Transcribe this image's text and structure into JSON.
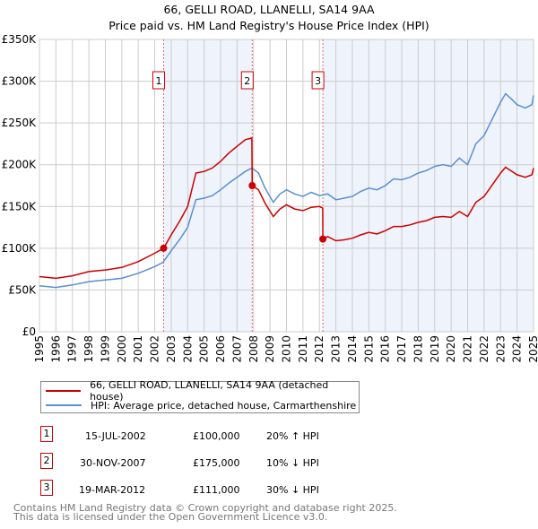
{
  "title": "66, GELLI ROAD, LLANELLI, SA14 9AA",
  "subtitle": "Price paid vs. HM Land Registry's House Price Index (HPI)",
  "chart_data": {
    "type": "line",
    "xlim": [
      1995,
      2025
    ],
    "ylim": [
      0,
      350000
    ],
    "yticks": [
      0,
      50000,
      100000,
      150000,
      200000,
      250000,
      300000,
      350000
    ],
    "ytick_labels": [
      "£0",
      "£50K",
      "£100K",
      "£150K",
      "£200K",
      "£250K",
      "£300K",
      "£350K"
    ],
    "xticks": [
      "1995",
      "1996",
      "1997",
      "1998",
      "1999",
      "2000",
      "2001",
      "2002",
      "2003",
      "2004",
      "2005",
      "2006",
      "2007",
      "2008",
      "2009",
      "2010",
      "2011",
      "2012",
      "2013",
      "2014",
      "2015",
      "2016",
      "2017",
      "2018",
      "2019",
      "2020",
      "2021",
      "2022",
      "2023",
      "2024",
      "2025"
    ],
    "colors": {
      "property": "#cc0000",
      "hpi": "#5b8fd0",
      "shade": "#eef3fc"
    },
    "series": [
      {
        "name": "66, GELLI ROAD, LLANELLI, SA14 9AA (detached house)",
        "key": "property",
        "x": [
          1995,
          1996,
          1997,
          1998,
          1999,
          2000,
          2001,
          2002,
          2002.54,
          2003,
          2003.5,
          2004,
          2004.5,
          2005,
          2005.5,
          2006,
          2006.5,
          2007,
          2007.5,
          2007.9,
          2007.92,
          2008.3,
          2008.7,
          2009.2,
          2009.6,
          2010,
          2010.5,
          2011,
          2011.5,
          2012,
          2012.2,
          2012.21,
          2012.5,
          2013,
          2013.5,
          2014,
          2014.5,
          2015,
          2015.5,
          2016,
          2016.5,
          2017,
          2017.5,
          2018,
          2018.5,
          2019,
          2019.5,
          2020,
          2020.5,
          2021,
          2021.5,
          2022,
          2022.5,
          2023,
          2023.3,
          2023.7,
          2024,
          2024.5,
          2024.9,
          2025
        ],
        "y": [
          66000,
          64000,
          67000,
          72000,
          74000,
          77000,
          84000,
          94000,
          100000,
          116000,
          132000,
          150000,
          190000,
          192000,
          196000,
          204000,
          214000,
          222000,
          230000,
          232000,
          175000,
          170000,
          154000,
          138000,
          147000,
          152000,
          147000,
          145000,
          149000,
          150000,
          148000,
          111000,
          114000,
          109000,
          110000,
          112000,
          116000,
          119000,
          117000,
          121000,
          126000,
          126000,
          128000,
          131000,
          133000,
          137000,
          138000,
          137000,
          144000,
          138000,
          155000,
          162000,
          176000,
          190000,
          197000,
          192000,
          188000,
          185000,
          188000,
          196000
        ]
      },
      {
        "name": "HPI: Average price, detached house, Carmarthenshire",
        "key": "hpi",
        "x": [
          1995,
          1996,
          1997,
          1998,
          1999,
          2000,
          2001,
          2002,
          2002.5,
          2003,
          2003.5,
          2004,
          2004.5,
          2005,
          2005.5,
          2006,
          2006.5,
          2007,
          2007.5,
          2007.9,
          2008.3,
          2008.7,
          2009.2,
          2009.6,
          2010,
          2010.5,
          2011,
          2011.5,
          2012,
          2012.5,
          2013,
          2013.5,
          2014,
          2014.5,
          2015,
          2015.5,
          2016,
          2016.5,
          2017,
          2017.5,
          2018,
          2018.5,
          2019,
          2019.5,
          2020,
          2020.5,
          2021,
          2021.5,
          2022,
          2022.5,
          2023,
          2023.3,
          2023.7,
          2024,
          2024.5,
          2024.9,
          2025
        ],
        "y": [
          55000,
          53000,
          56000,
          60000,
          62000,
          64000,
          70000,
          78000,
          83000,
          97000,
          110000,
          125000,
          158000,
          160000,
          163000,
          170000,
          178000,
          185000,
          192000,
          196000,
          190000,
          172000,
          155000,
          165000,
          170000,
          165000,
          162000,
          167000,
          163000,
          165000,
          158000,
          160000,
          162000,
          168000,
          172000,
          170000,
          175000,
          183000,
          182000,
          185000,
          190000,
          193000,
          198000,
          200000,
          198000,
          208000,
          200000,
          225000,
          235000,
          255000,
          275000,
          285000,
          278000,
          272000,
          268000,
          272000,
          283000
        ]
      }
    ],
    "sales": [
      {
        "label": "1",
        "x": 2002.54,
        "y": 100000
      },
      {
        "label": "2",
        "x": 2007.92,
        "y": 175000
      },
      {
        "label": "3",
        "x": 2012.21,
        "y": 111000
      }
    ]
  },
  "legend": {
    "property": "66, GELLI ROAD, LLANELLI, SA14 9AA (detached house)",
    "hpi": "HPI: Average price, detached house, Carmarthenshire"
  },
  "transactions": [
    {
      "num": "1",
      "date": "15-JUL-2002",
      "price": "£100,000",
      "hpi": "20% ↑ HPI"
    },
    {
      "num": "2",
      "date": "30-NOV-2007",
      "price": "£175,000",
      "hpi": "10% ↓ HPI"
    },
    {
      "num": "3",
      "date": "19-MAR-2012",
      "price": "£111,000",
      "hpi": "30% ↓ HPI"
    }
  ],
  "footer": [
    "Contains HM Land Registry data © Crown copyright and database right 2025.",
    "This data is licensed under the Open Government Licence v3.0."
  ]
}
